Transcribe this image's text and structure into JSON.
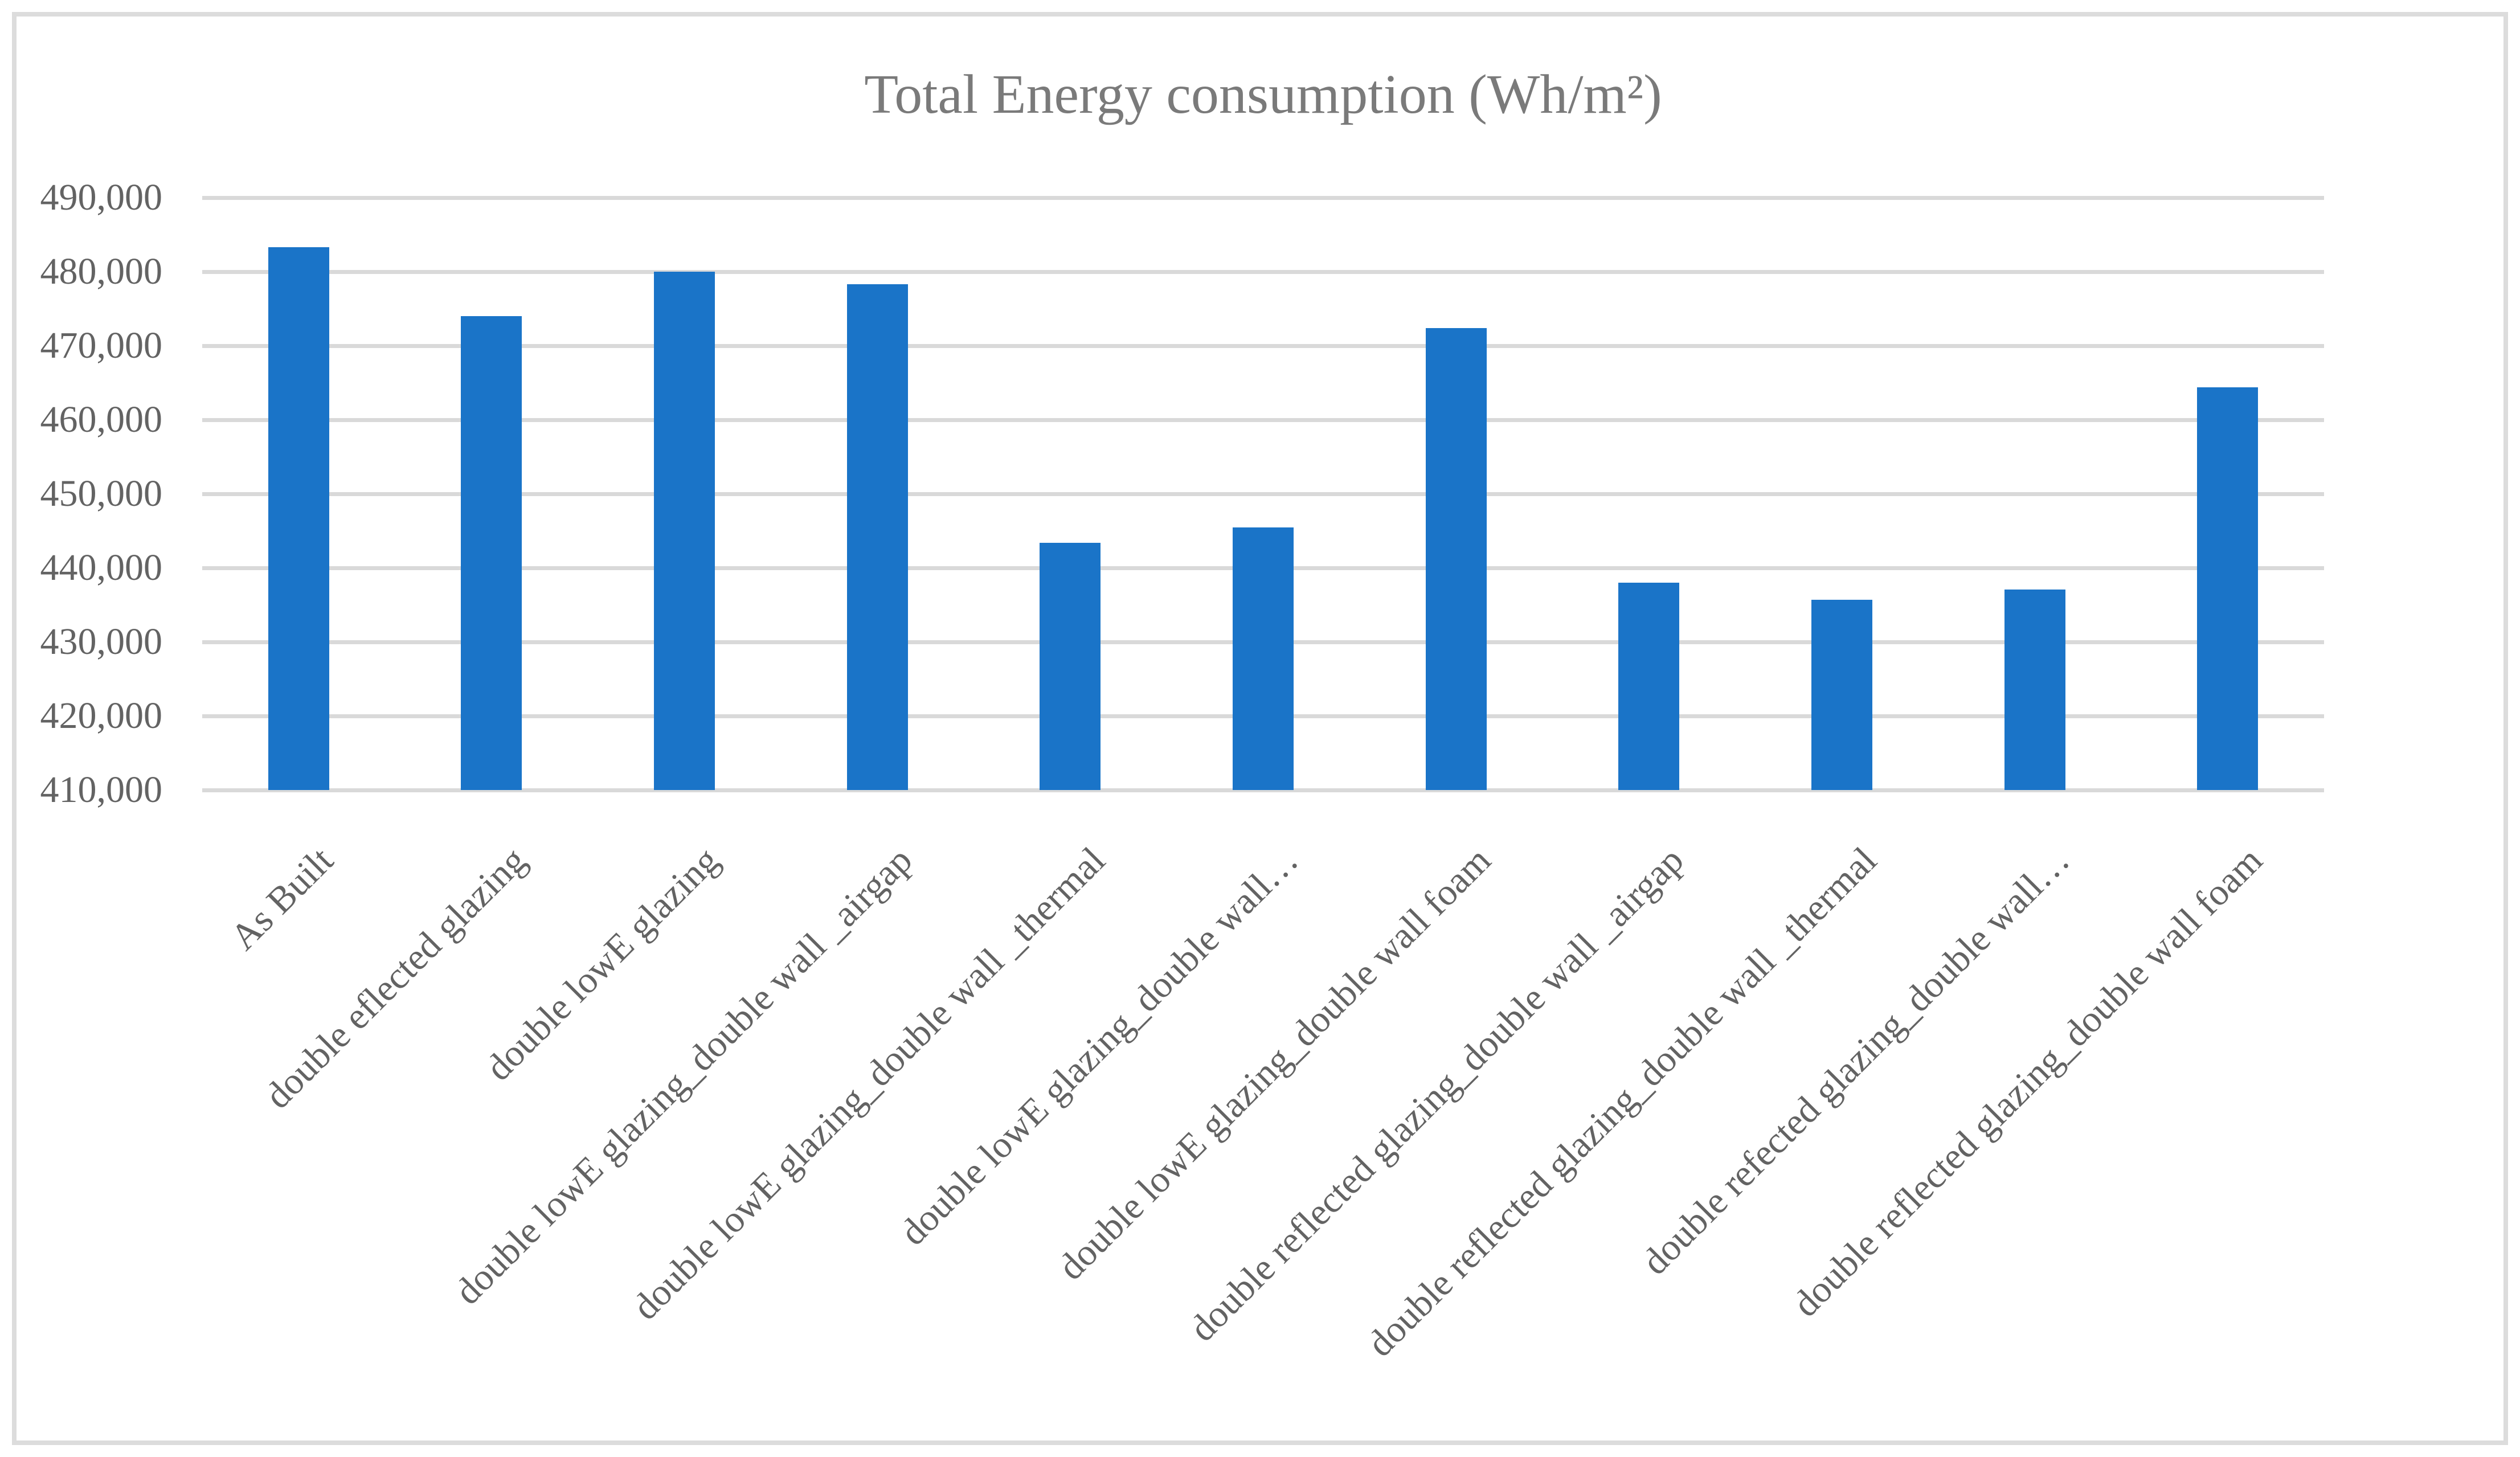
{
  "chart_data": {
    "type": "bar",
    "title": "Total Energy consumption (Wh/m²)",
    "categories": [
      "As Built",
      "double eflected glazing",
      "double lowE glazing",
      "double lowE glazing_double wall _airgap",
      "double lowE glazing_double wall _thermal",
      "double lowE glazing_double wall…",
      "double lowE glazing_double wall foam",
      "double reflected glazing_double wall _airgap",
      "double reflected glazing_double wall _thermal",
      "double refected glazing_double wall…",
      "double reflected glazing_double wall foam"
    ],
    "values": [
      483300,
      474000,
      480000,
      478300,
      443400,
      445500,
      472400,
      438000,
      435700,
      437100,
      464400
    ],
    "xlabel": "",
    "ylabel": "",
    "ylim": [
      410000,
      490000
    ],
    "ytick_step": 10000,
    "ytick_labels": [
      "410,000",
      "420,000",
      "430,000",
      "440,000",
      "450,000",
      "460,000",
      "470,000",
      "480,000",
      "490,000"
    ],
    "grid": true,
    "legend_position": "none",
    "colors": {
      "bar": "#1A74C8",
      "gridline": "#D9D9D9",
      "tick_label": "#636363",
      "title": "#7A7A7A",
      "border": "#DCDCDC"
    }
  }
}
